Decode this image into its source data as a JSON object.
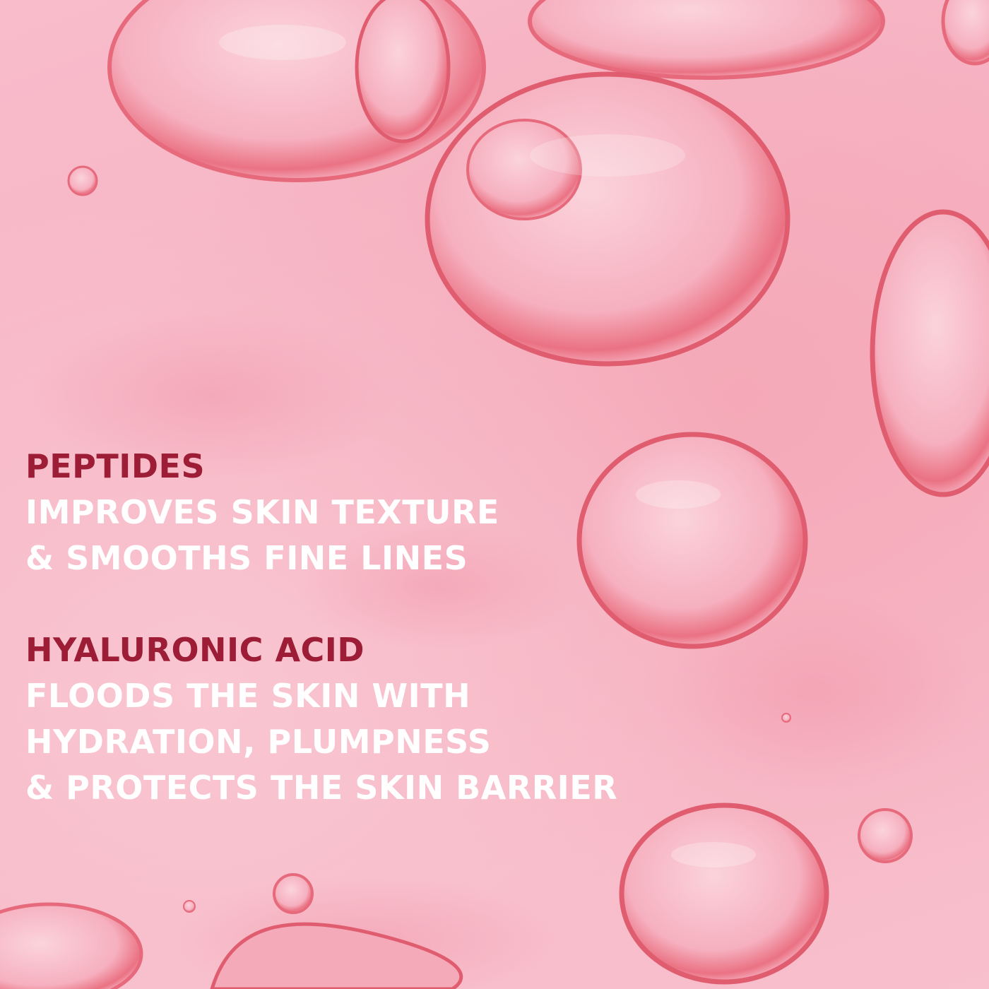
{
  "image": {
    "type": "product-ingredient-graphic",
    "background": "pink serum gel texture with bubbles",
    "colors": {
      "heading": "#9c1d35",
      "body_text": "#ffffff",
      "background": "#f7b9c6",
      "bubble_rim": "#e8606e"
    }
  },
  "ingredients": [
    {
      "name": "PEPTIDES",
      "lines": [
        "IMPROVES SKIN TEXTURE",
        "& SMOOTHS FINE LINES"
      ]
    },
    {
      "name": "HYALURONIC ACID",
      "lines": [
        "FLOODS THE SKIN WITH",
        "HYDRATION, PLUMPNESS",
        "& PROTECTS THE SKIN BARRIER"
      ]
    }
  ]
}
